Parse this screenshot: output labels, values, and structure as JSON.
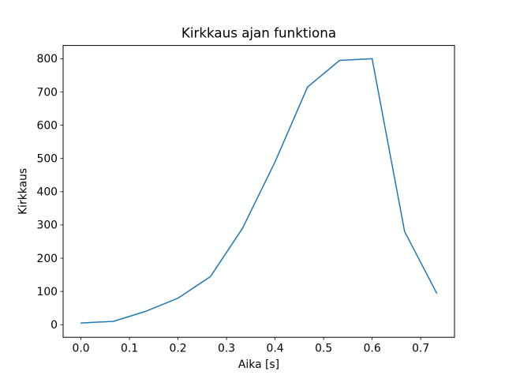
{
  "figure": {
    "background": "#ffffff"
  },
  "chart_data": {
    "type": "line",
    "title": "Kirkkaus ajan funktiona",
    "xlabel": "Aika [s]",
    "ylabel": "Kirkkaus",
    "x": [
      0.0,
      0.067,
      0.133,
      0.2,
      0.267,
      0.333,
      0.4,
      0.467,
      0.533,
      0.6,
      0.667,
      0.733
    ],
    "values": [
      5,
      10,
      40,
      80,
      145,
      290,
      490,
      715,
      795,
      800,
      280,
      95
    ],
    "line_color": "#1f77b4",
    "line_width": 1.5,
    "axis_color": "#000000",
    "xlim": [
      -0.0367,
      0.7697
    ],
    "ylim": [
      -37.9,
      839.9
    ],
    "xticks": [
      0.0,
      0.1,
      0.2,
      0.3,
      0.4,
      0.5,
      0.6,
      0.7
    ],
    "xtick_labels": [
      "0.0",
      "0.1",
      "0.2",
      "0.3",
      "0.4",
      "0.5",
      "0.6",
      "0.7"
    ],
    "yticks": [
      0,
      100,
      200,
      300,
      400,
      500,
      600,
      700,
      800
    ],
    "ytick_labels": [
      "0",
      "100",
      "200",
      "300",
      "400",
      "500",
      "600",
      "700",
      "800"
    ],
    "grid": false,
    "legend": "none"
  }
}
